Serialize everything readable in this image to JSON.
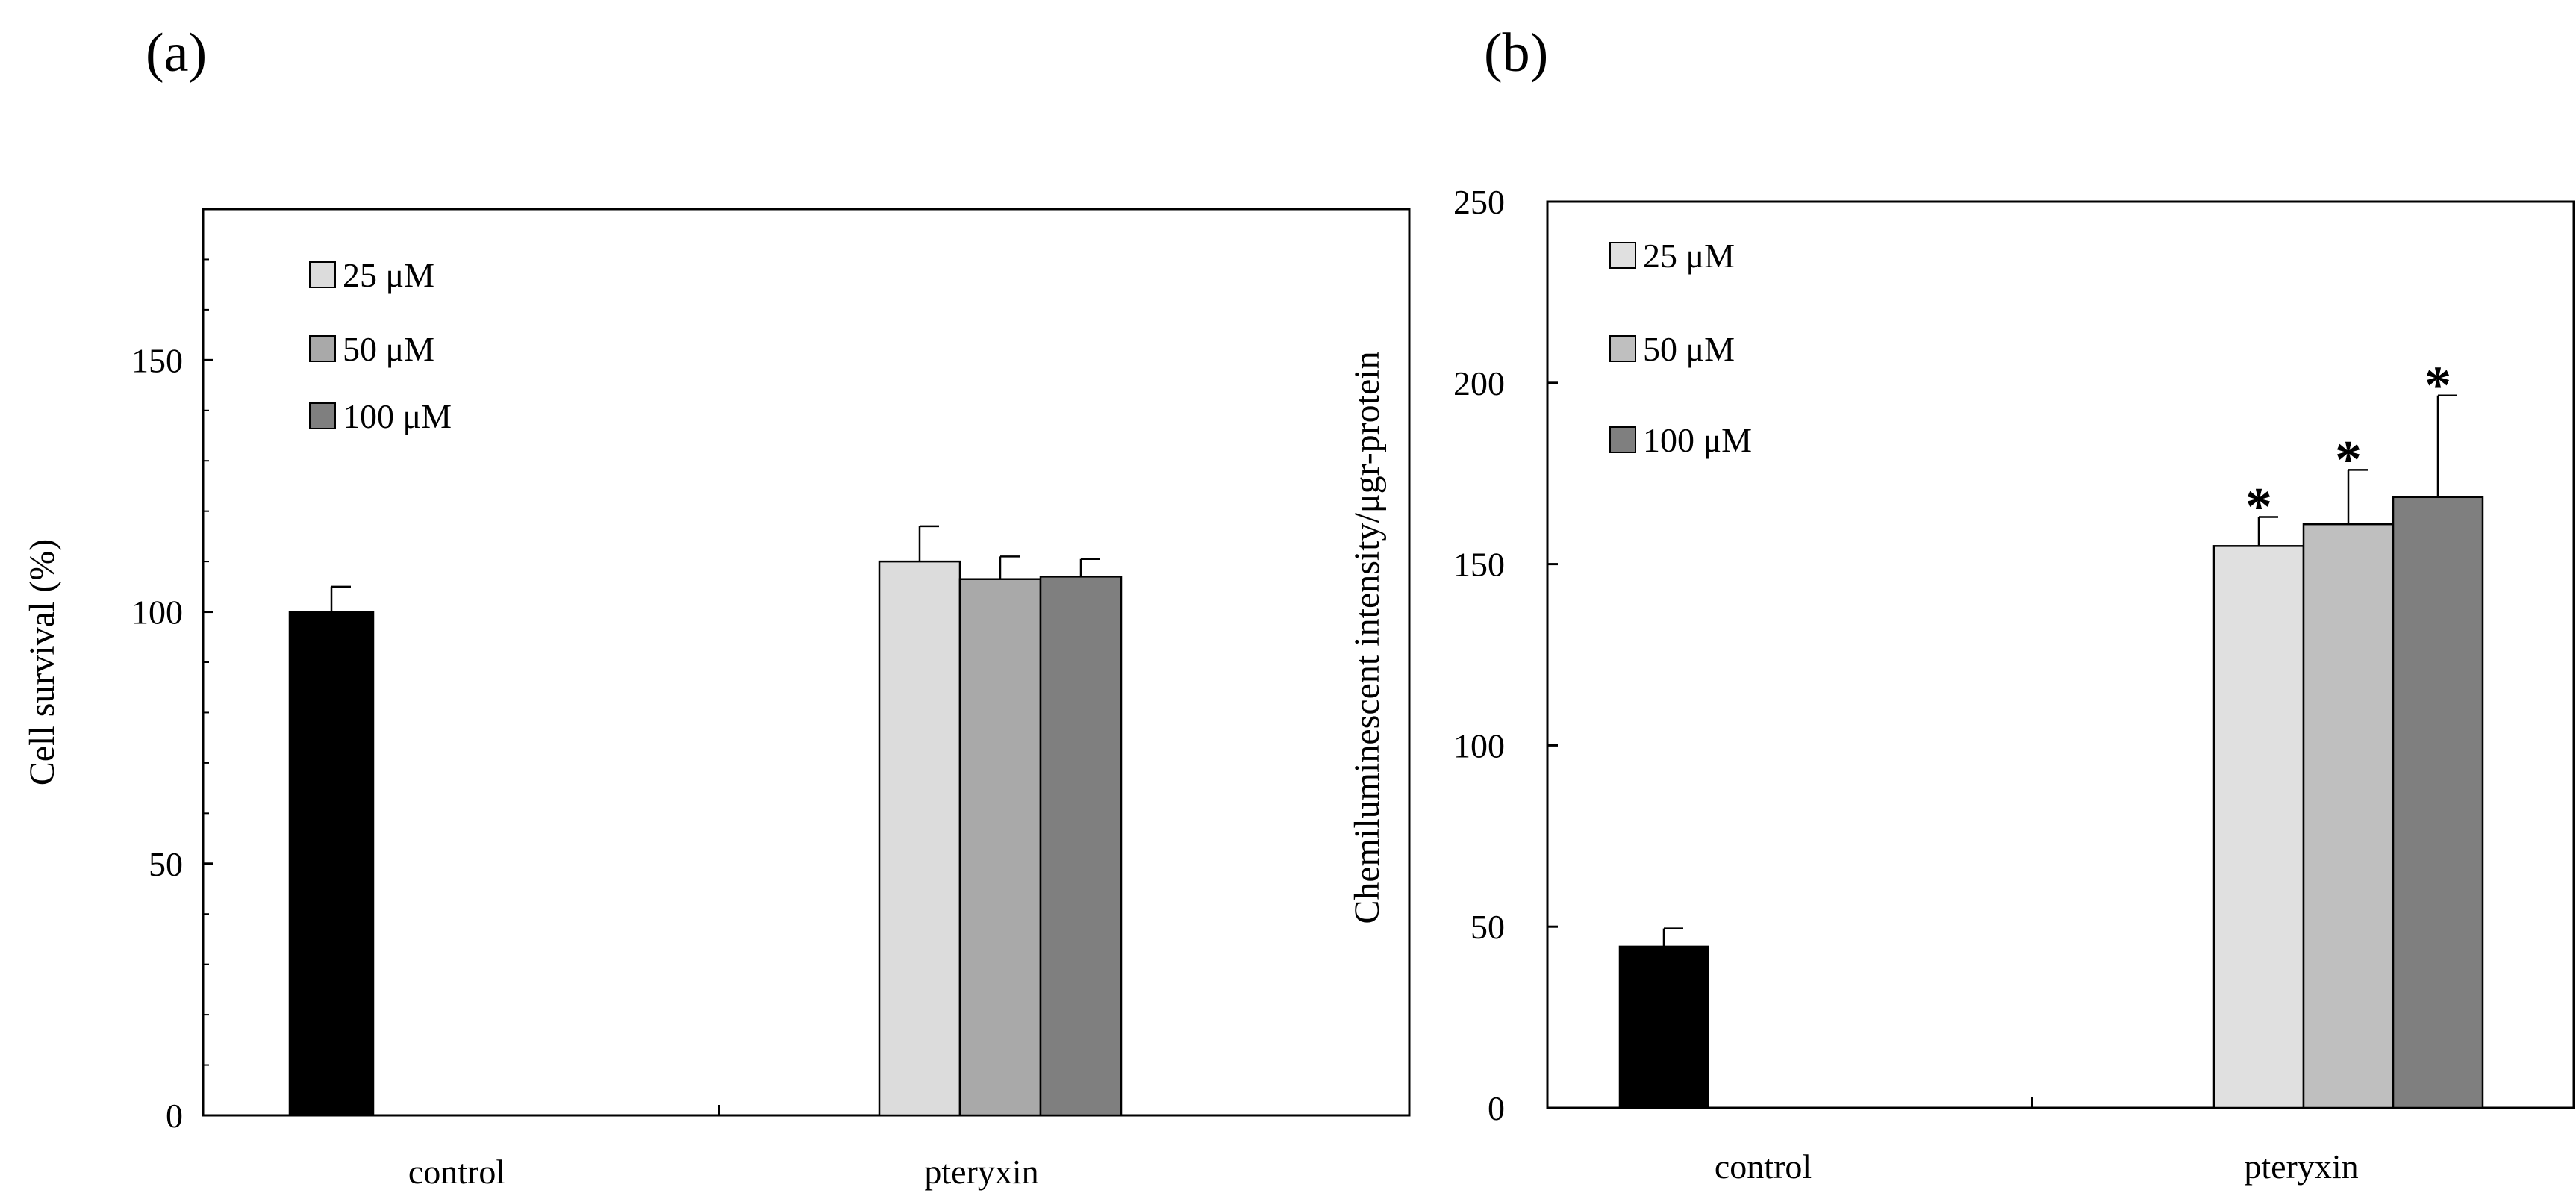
{
  "chart_data": [
    {
      "panel": "(a)",
      "type": "bar",
      "title": "",
      "xlabel": "",
      "ylabel": "Cell survival (%)",
      "ylim": [
        0,
        180
      ],
      "yticks": [
        0,
        50,
        100,
        150
      ],
      "categories": [
        "control",
        "pteryxin"
      ],
      "control": {
        "value": 100,
        "error": 5,
        "color": "#000000"
      },
      "series": [
        {
          "name": "25 μM",
          "color": "#dcdcdc",
          "values": [
            110,
            7
          ],
          "legend": "25 μM"
        },
        {
          "name": "50 μM",
          "color": "#a9a9a9",
          "values": [
            106.5,
            4.5
          ],
          "legend": "50 μM"
        },
        {
          "name": "100 μM",
          "color": "#7f7f7f",
          "values": [
            107,
            3.5
          ],
          "legend": "100 μM"
        }
      ],
      "significance": [
        false,
        false,
        false
      ],
      "legend_position": "top-left"
    },
    {
      "panel": "(b)",
      "type": "bar",
      "title": "",
      "xlabel": "",
      "ylabel": "Chemiluminescent  intensity/μgr-protein",
      "ylim": [
        0,
        250
      ],
      "yticks": [
        0,
        50,
        100,
        150,
        200,
        250
      ],
      "categories": [
        "control",
        "pteryxin"
      ],
      "control": {
        "value": 44.5,
        "error": 5,
        "color": "#000000"
      },
      "series": [
        {
          "name": "25 μM",
          "color": "#e0e0e0",
          "values": [
            155,
            8
          ],
          "legend": "25 μM"
        },
        {
          "name": "50 μM",
          "color": "#bfbfbf",
          "values": [
            161,
            15
          ],
          "legend": "50 μM"
        },
        {
          "name": "100 μM",
          "color": "#7f7f7f",
          "values": [
            168.5,
            28
          ],
          "legend": "100 μM"
        }
      ],
      "significance": [
        true,
        true,
        true
      ],
      "star_symbol": "*",
      "legend_position": "top-left"
    }
  ]
}
